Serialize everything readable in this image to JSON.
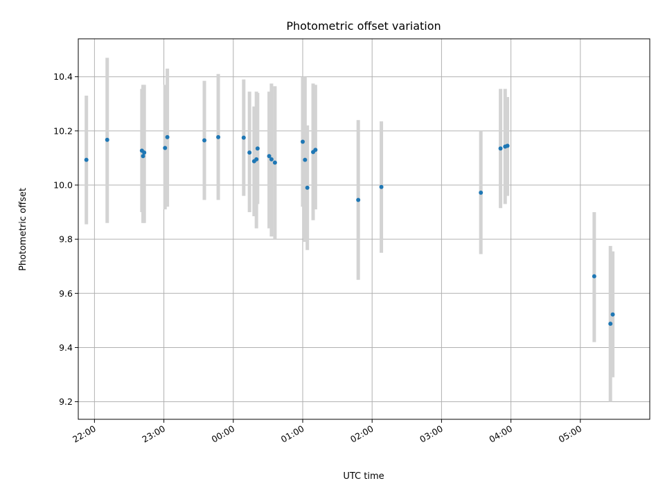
{
  "chart_data": {
    "type": "scatter",
    "title": "Photometric offset variation",
    "xlabel": "UTC time",
    "ylabel": "Photometric offset",
    "x_start_label": "21:00",
    "xlim": [
      "21:46",
      "06:00"
    ],
    "ylim": [
      9.135,
      10.54
    ],
    "grid": true,
    "x_ticks": [
      "22:00",
      "23:00",
      "00:00",
      "01:00",
      "02:00",
      "03:00",
      "04:00",
      "05:00"
    ],
    "y_ticks": [
      9.2,
      9.4,
      9.6,
      9.8,
      10.0,
      10.2,
      10.4
    ],
    "marker_color": "#1f77b4",
    "errorbar_color": "#d3d3d3",
    "points": [
      {
        "x": "21:53",
        "y": 10.093,
        "lo": 9.855,
        "hi": 10.33
      },
      {
        "x": "22:11",
        "y": 10.167,
        "lo": 9.86,
        "hi": 10.47
      },
      {
        "x": "22:41",
        "y": 10.127,
        "lo": 9.9,
        "hi": 10.355
      },
      {
        "x": "22:42",
        "y": 10.107,
        "lo": 9.86,
        "hi": 10.37
      },
      {
        "x": "22:43",
        "y": 10.12,
        "lo": 9.86,
        "hi": 10.37
      },
      {
        "x": "23:01",
        "y": 10.137,
        "lo": 9.91,
        "hi": 10.37
      },
      {
        "x": "23:03",
        "y": 10.177,
        "lo": 9.92,
        "hi": 10.43
      },
      {
        "x": "23:35",
        "y": 10.165,
        "lo": 9.945,
        "hi": 10.385
      },
      {
        "x": "23:47",
        "y": 10.177,
        "lo": 9.945,
        "hi": 10.41
      },
      {
        "x": "00:09",
        "y": 10.175,
        "lo": 9.96,
        "hi": 10.39
      },
      {
        "x": "00:14",
        "y": 10.12,
        "lo": 9.9,
        "hi": 10.345
      },
      {
        "x": "00:18",
        "y": 10.088,
        "lo": 9.885,
        "hi": 10.29
      },
      {
        "x": "00:20",
        "y": 10.095,
        "lo": 9.84,
        "hi": 10.345
      },
      {
        "x": "00:21",
        "y": 10.135,
        "lo": 9.93,
        "hi": 10.34
      },
      {
        "x": "00:31",
        "y": 10.107,
        "lo": 9.84,
        "hi": 10.345
      },
      {
        "x": "00:33",
        "y": 10.095,
        "lo": 9.81,
        "hi": 10.375
      },
      {
        "x": "00:36",
        "y": 10.083,
        "lo": 9.8,
        "hi": 10.365
      },
      {
        "x": "01:00",
        "y": 10.16,
        "lo": 9.92,
        "hi": 10.4
      },
      {
        "x": "01:02",
        "y": 10.093,
        "lo": 9.79,
        "hi": 10.4
      },
      {
        "x": "01:04",
        "y": 9.99,
        "lo": 9.76,
        "hi": 10.22
      },
      {
        "x": "01:09",
        "y": 10.122,
        "lo": 9.87,
        "hi": 10.375
      },
      {
        "x": "01:11",
        "y": 10.13,
        "lo": 9.91,
        "hi": 10.37
      },
      {
        "x": "01:48",
        "y": 9.945,
        "lo": 9.65,
        "hi": 10.24
      },
      {
        "x": "02:08",
        "y": 9.993,
        "lo": 9.75,
        "hi": 10.235
      },
      {
        "x": "03:34",
        "y": 9.972,
        "lo": 9.745,
        "hi": 10.2
      },
      {
        "x": "03:51",
        "y": 10.135,
        "lo": 9.915,
        "hi": 10.355
      },
      {
        "x": "03:55",
        "y": 10.142,
        "lo": 9.93,
        "hi": 10.355
      },
      {
        "x": "03:57",
        "y": 10.145,
        "lo": 9.96,
        "hi": 10.325
      },
      {
        "x": "05:12",
        "y": 9.663,
        "lo": 9.42,
        "hi": 9.9
      },
      {
        "x": "05:26",
        "y": 9.488,
        "lo": 9.2,
        "hi": 9.775
      },
      {
        "x": "05:28",
        "y": 9.522,
        "lo": 9.29,
        "hi": 9.755
      }
    ]
  }
}
